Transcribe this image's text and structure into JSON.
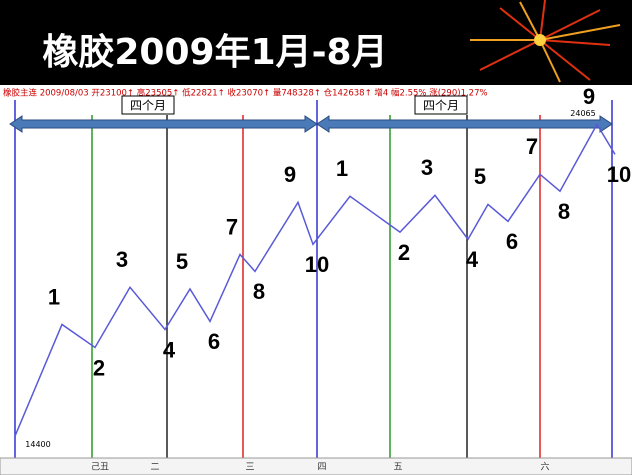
{
  "header": {
    "title": "橡胶2009年1月-8月"
  },
  "info_bar": "橡胶主连 2009/08/03 开23100↑ 高23505↑ 低22821↑ 收23070↑ 量748328↑ 仓142638↑ 增4 幅2.55% 涨(290)1.27%",
  "chart_data": {
    "type": "line",
    "annotations": [
      "四个月",
      "四个月"
    ],
    "price_labels": [
      {
        "value": 24065,
        "label": "24065"
      },
      {
        "value": 14400,
        "label": "14400"
      }
    ],
    "x_labels": [
      "己丑",
      "二",
      "三",
      "四",
      "五",
      "六"
    ],
    "categories": [
      null,
      "1",
      "2",
      "3",
      "4",
      "5",
      "6",
      "7",
      "8",
      "9",
      "10",
      "1",
      "2",
      "3",
      "4",
      "5",
      "6",
      "7",
      "8",
      "9",
      "10"
    ],
    "series": [
      {
        "color": "#5a5ad8",
        "values": [
          14650,
          17950,
          17270,
          19050,
          17800,
          19000,
          18040,
          20020,
          19520,
          21560,
          20320,
          21740,
          20680,
          21770,
          20470,
          21500,
          21000,
          22390,
          21890,
          23870,
          22980
        ]
      }
    ],
    "ylim": [
      14000,
      24500
    ]
  }
}
